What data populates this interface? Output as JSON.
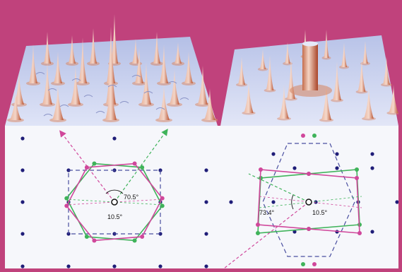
{
  "figure": {
    "top_left_panel": {
      "description_icon": "surface-peaks-icon"
    },
    "top_right_panel": {
      "description_icon": "surface-peaks-icon"
    },
    "bottom_left_diagram": {
      "angle_outer": "70.5°",
      "angle_inner": "10.5°"
    },
    "bottom_right_diagram": {
      "angle_outer": "73.4°",
      "angle_inner": "10.5°"
    }
  },
  "colors": {
    "frame": "#c0427c",
    "lattice_dot": "#1f1d78",
    "green": "#3fb35a",
    "magenta": "#d0479b",
    "dashed_hex": "#4a4fa0",
    "surface": "#c9d1ee",
    "peak": "#d06c48"
  }
}
